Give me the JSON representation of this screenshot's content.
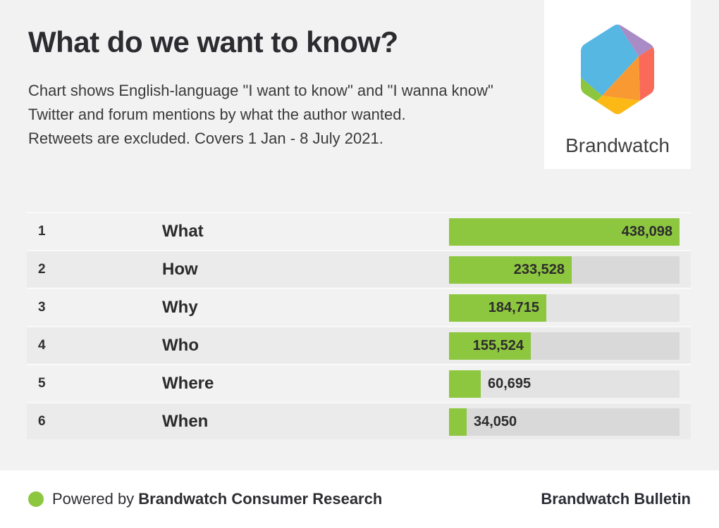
{
  "header": {
    "title": "What do we want to know?",
    "subtitle_lines": [
      "Chart shows English-language \"I want to know\" and \"I wanna know\"",
      "Twitter and forum mentions by what the author wanted.",
      "Retweets are excluded. Covers 1 Jan - 8 July 2021."
    ]
  },
  "logo": {
    "brand_name": "Brandwatch",
    "colors": {
      "blue": "#56b7e3",
      "purple": "#a98bc6",
      "coral": "#f96a58",
      "orange": "#f89a31",
      "yellow": "#fcb915",
      "green": "#8cc63f"
    }
  },
  "chart_data": {
    "type": "bar",
    "orientation": "horizontal",
    "title": "What do we want to know?",
    "categories": [
      "What",
      "How",
      "Why",
      "Who",
      "Where",
      "When"
    ],
    "ranks": [
      "1",
      "2",
      "3",
      "4",
      "5",
      "6"
    ],
    "values": [
      438098,
      233528,
      184715,
      155524,
      60695,
      34050
    ],
    "value_labels": [
      "438,098",
      "233,528",
      "184,715",
      "155,524",
      "60,695",
      "34,050"
    ],
    "xlim": [
      0,
      438098
    ],
    "bar_color": "#8dc63f",
    "grid": false,
    "legend": "none"
  },
  "footer": {
    "powered_by_prefix": "Powered by ",
    "powered_by_brand": "Brandwatch Consumer Research",
    "right_text": "Brandwatch Bulletin",
    "dot_color": "#8dc63f"
  },
  "colors": {
    "page_background": "#f2f2f2",
    "even_row_band": "#ebebeb",
    "odd_row_track": "#e3e3e3",
    "even_row_track": "#d9d9d9",
    "bar_green": "#8dc63f",
    "text_dark": "#2b2b30",
    "footer_background": "#ffffff"
  }
}
